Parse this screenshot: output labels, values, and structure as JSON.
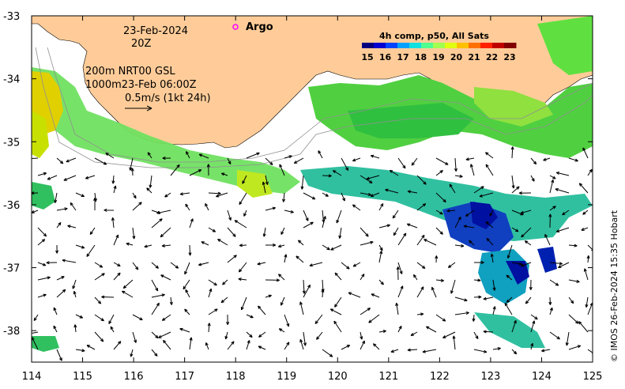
{
  "map": {
    "date": "23-Feb-2024",
    "hour": "20Z",
    "line1": "200m  NRT00 GSL",
    "line2": "1000m23-Feb 06:00Z",
    "vector_scale": "0.5m/s (1kt 24h)",
    "argo_label": "Argo",
    "credit": "© IMOS 26-Feb-2024 15:35 Hobart"
  },
  "colorbar": {
    "title": "4h comp, p50, All Sats",
    "labels": [
      "15",
      "16",
      "17",
      "18",
      "19",
      "20",
      "21",
      "22",
      "23"
    ],
    "colors": [
      "#00007f",
      "#0000d0",
      "#0044ff",
      "#00a0ff",
      "#10e0e0",
      "#50ff90",
      "#a0ff50",
      "#e0ff10",
      "#ffc000",
      "#ff7000",
      "#ff2000",
      "#c00000",
      "#800000"
    ]
  },
  "axes": {
    "x_ticks": [
      "114",
      "115",
      "116",
      "117",
      "118",
      "119",
      "120",
      "121",
      "122",
      "123",
      "124",
      "125"
    ],
    "y_ticks": [
      "-33",
      "-34",
      "-35",
      "-36",
      "-37",
      "-38"
    ],
    "lon_range": [
      114,
      125
    ],
    "lat_range": [
      -38.5,
      -33
    ]
  },
  "colors": {
    "land": "#ffcc99",
    "argo": "#ff00ff"
  }
}
